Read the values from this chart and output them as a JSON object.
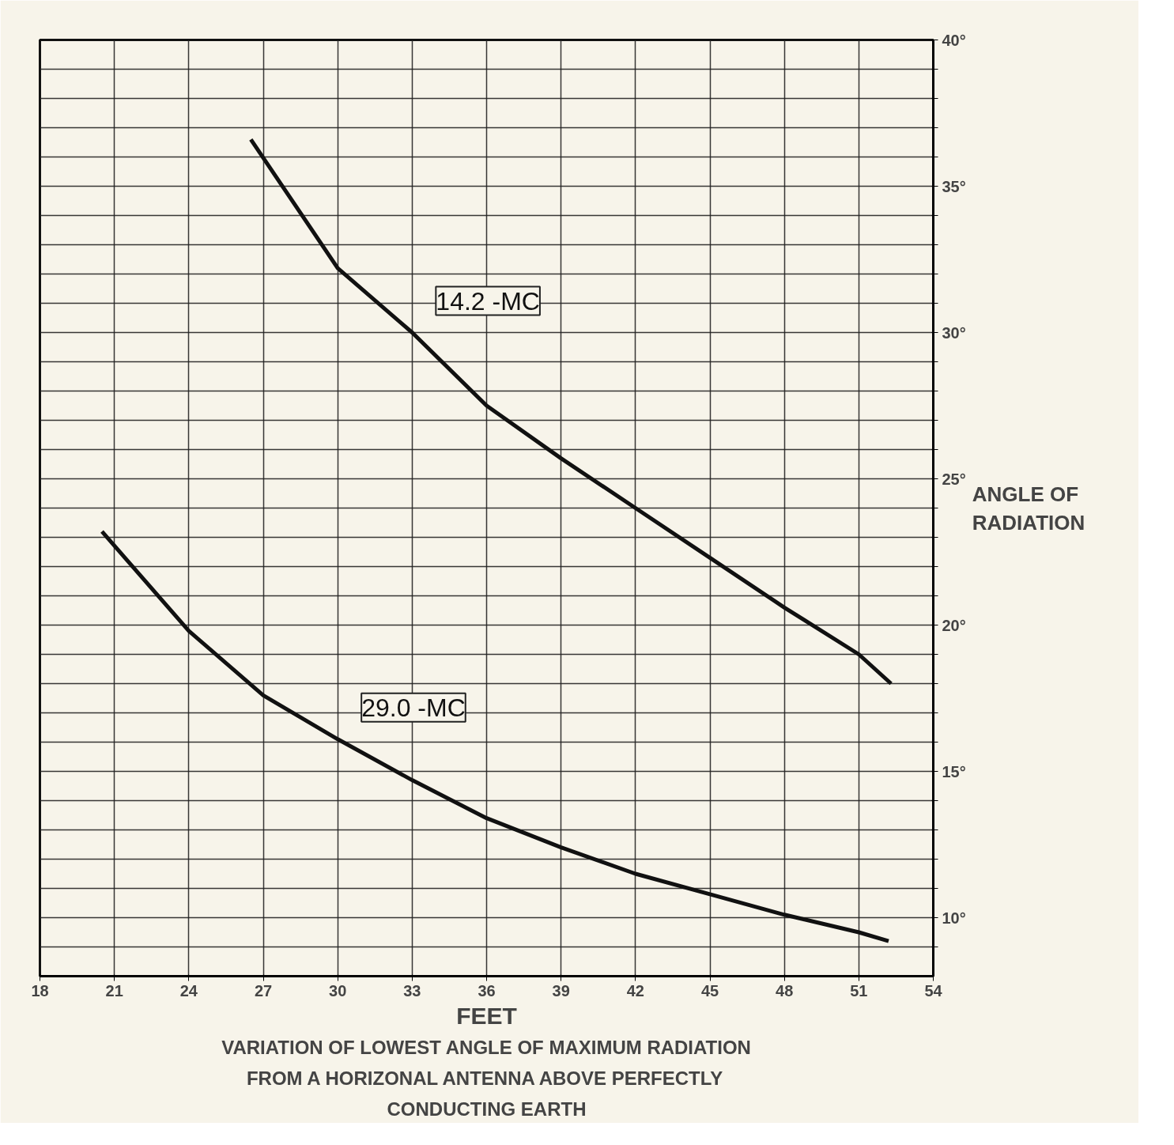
{
  "chart_data": {
    "type": "line",
    "title": "VARIATION OF LOWEST ANGLE OF MAXIMUM RADIATION FROM A HORIZONAL ANTENNA ABOVE PERFECTLY CONDUCTING EARTH",
    "xlabel": "FEET",
    "ylabel": "ANGLE OF RADIATION",
    "xlim": [
      18,
      54
    ],
    "xticks": [
      18,
      21,
      24,
      27,
      30,
      33,
      36,
      39,
      42,
      45,
      48,
      51,
      54
    ],
    "ylim": [
      8,
      40
    ],
    "yticks": [
      {
        "value": 9,
        "label": null
      },
      {
        "value": 10,
        "label": "10°"
      },
      {
        "value": 11,
        "label": null
      },
      {
        "value": 12,
        "label": null
      },
      {
        "value": 13,
        "label": null
      },
      {
        "value": 14,
        "label": null
      },
      {
        "value": 15,
        "label": "15°"
      },
      {
        "value": 16,
        "label": null
      },
      {
        "value": 17,
        "label": null
      },
      {
        "value": 18,
        "label": null
      },
      {
        "value": 19,
        "label": null
      },
      {
        "value": 20,
        "label": "20°"
      },
      {
        "value": 21,
        "label": null
      },
      {
        "value": 22,
        "label": null
      },
      {
        "value": 23,
        "label": null
      },
      {
        "value": 24,
        "label": null
      },
      {
        "value": 25,
        "label": "25°"
      },
      {
        "value": 26,
        "label": null
      },
      {
        "value": 27,
        "label": null
      },
      {
        "value": 28,
        "label": null
      },
      {
        "value": 29,
        "label": null
      },
      {
        "value": 30,
        "label": "30°"
      },
      {
        "value": 31,
        "label": null
      },
      {
        "value": 32,
        "label": null
      },
      {
        "value": 33,
        "label": null
      },
      {
        "value": 34,
        "label": null
      },
      {
        "value": 35,
        "label": "35°"
      },
      {
        "value": 36,
        "label": null
      },
      {
        "value": 37,
        "label": null
      },
      {
        "value": 38,
        "label": null
      },
      {
        "value": 39,
        "label": null
      },
      {
        "value": 40,
        "label": "40°"
      }
    ],
    "grid": true,
    "line_style": "solid",
    "marker": "none",
    "series": [
      {
        "name": "14.2 -MC",
        "color": "#111111",
        "x": [
          26.5,
          30,
          33,
          36,
          39,
          42,
          45,
          48,
          51,
          52.3
        ],
        "values": [
          36.6,
          32.2,
          30,
          27.5,
          25.7,
          24,
          22.3,
          20.6,
          19,
          18
        ]
      },
      {
        "name": "29.0 -MC",
        "color": "#111111",
        "x": [
          20.5,
          24,
          27,
          30,
          33,
          36,
          39,
          42,
          45,
          48,
          51,
          52.2
        ],
        "values": [
          23.2,
          19.8,
          17.6,
          16.1,
          14.7,
          13.4,
          12.4,
          11.5,
          10.8,
          10.1,
          9.5,
          9.2
        ]
      }
    ]
  }
}
